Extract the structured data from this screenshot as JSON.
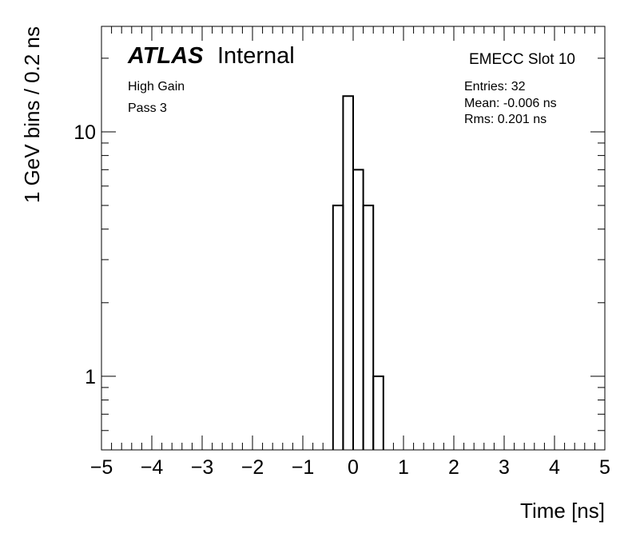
{
  "chart_data": {
    "type": "histogram",
    "label_main": "ATLAS",
    "label_sub": "Internal",
    "annotations": [
      "High Gain",
      "Pass 3"
    ],
    "region": "EMECC Slot 10",
    "stats": [
      "Entries: 32",
      "Mean: -0.006 ns",
      "Rms: 0.201 ns"
    ],
    "xlabel": "Time [ns]",
    "ylabel": "1 GeV bins / 0.2 ns",
    "bins": [
      -0.4,
      -0.2,
      0,
      0.2,
      0.4,
      0.6
    ],
    "counts": [
      5,
      14,
      7,
      5,
      1
    ],
    "color": "#000000",
    "xlim": [
      -5,
      5
    ],
    "xticks": [
      {
        "value": -5,
        "label": "−5"
      },
      {
        "value": -4,
        "label": "−4"
      },
      {
        "value": -3,
        "label": "−3"
      },
      {
        "value": -2,
        "label": "−2"
      },
      {
        "value": -1,
        "label": "−1"
      },
      0,
      1,
      2,
      3,
      4,
      5
    ],
    "xminorticks": [
      -4.8,
      -4.6,
      -4.4,
      -4.2,
      -3.8,
      -3.6,
      -3.4,
      -3.2,
      -2.8,
      -2.6,
      -2.4,
      -2.2,
      -1.8,
      -1.6,
      -1.4,
      -1.2,
      -0.8,
      -0.6,
      -0.4,
      -0.2,
      0.2,
      0.4,
      0.6,
      0.8,
      1.2,
      1.4,
      1.6,
      1.8,
      2.2,
      2.4,
      2.6,
      2.8,
      3.2,
      3.4,
      3.6,
      3.8,
      4.2,
      4.4,
      4.6,
      4.8
    ],
    "ylim": [
      0.5,
      27
    ],
    "yscale": "log",
    "yticks": [
      1,
      10
    ],
    "yminorticks": [
      0.6,
      0.7,
      0.8,
      0.9,
      2,
      3,
      4,
      5,
      6,
      7,
      8,
      9,
      20
    ]
  }
}
